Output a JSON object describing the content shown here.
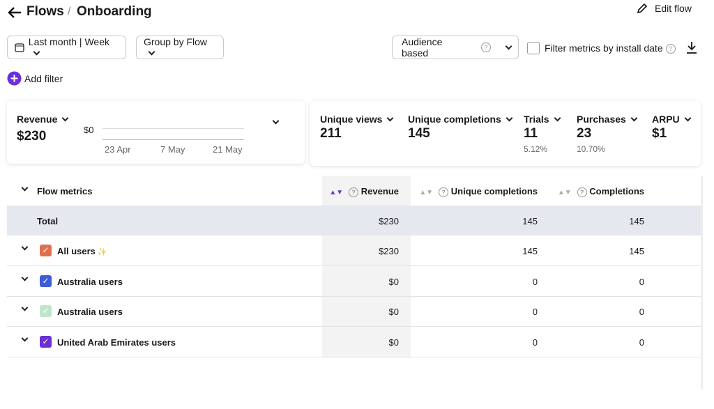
{
  "breadcrumb": {
    "root": "Flows",
    "separator": "/",
    "current": "Onboarding"
  },
  "edit_flow": "Edit flow",
  "controls": {
    "date_range": "Last month | Week",
    "group_by": "Group by Flow",
    "audience": "Audience based",
    "filter_checkbox": "Filter metrics by install date",
    "add_filter": "Add filter"
  },
  "revenue_card": {
    "label": "Revenue",
    "value": "$230",
    "chart": {
      "y_label": "$0",
      "x_labels": [
        "23 Apr",
        "7 May",
        "21 May"
      ]
    }
  },
  "metrics": [
    {
      "label": "Unique views",
      "value": "211"
    },
    {
      "label": "Unique completions",
      "value": "145"
    },
    {
      "label": "Trials",
      "value": "11",
      "sub": "5.12%"
    },
    {
      "label": "Purchases",
      "value": "23",
      "sub": "10.70%"
    },
    {
      "label": "ARPU",
      "value": "$1"
    }
  ],
  "table": {
    "title": "Flow metrics",
    "columns": [
      "Revenue",
      "Unique completions",
      "Completions"
    ],
    "total": {
      "label": "Total",
      "cells": [
        "$230",
        "145",
        "145"
      ]
    },
    "rows": [
      {
        "name": "All users",
        "badge": "✨",
        "color": "#de6f4f",
        "cells": [
          "$230",
          "145",
          "145"
        ]
      },
      {
        "name": "Australia users",
        "color": "#3e5bd8",
        "cells": [
          "$0",
          "0",
          "0"
        ]
      },
      {
        "name": "Australia users",
        "color": "#bfe6cb",
        "cells": [
          "$0",
          "0",
          "0"
        ]
      },
      {
        "name": "United Arab Emirates users",
        "color": "#6b2fd6",
        "cells": [
          "$0",
          "0",
          "0"
        ]
      }
    ]
  }
}
